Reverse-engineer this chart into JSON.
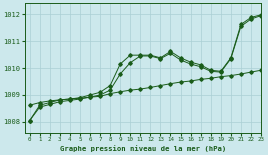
{
  "title": "Graphe pression niveau de la mer (hPa)",
  "background_color": "#cce8ec",
  "grid_color": "#aacfd4",
  "line_color": "#1a5c1a",
  "xlim": [
    -0.5,
    23
  ],
  "ylim": [
    1007.6,
    1012.4
  ],
  "yticks": [
    1008,
    1009,
    1010,
    1011,
    1012
  ],
  "xticks": [
    0,
    1,
    2,
    3,
    4,
    5,
    6,
    7,
    8,
    9,
    10,
    11,
    12,
    13,
    14,
    15,
    16,
    17,
    18,
    19,
    20,
    21,
    22,
    23
  ],
  "s1_y": [
    1008.05,
    1008.62,
    1008.72,
    1008.82,
    1008.85,
    1008.9,
    1009.0,
    1009.1,
    1009.35,
    1010.15,
    1010.48,
    1010.48,
    1010.48,
    1010.38,
    1010.62,
    1010.38,
    1010.22,
    1010.12,
    1009.92,
    1009.88,
    1010.38,
    1011.62,
    1011.88,
    1011.98
  ],
  "s2_y": [
    1008.62,
    1008.72,
    1008.78,
    1008.82,
    1008.85,
    1008.88,
    1008.92,
    1008.95,
    1009.05,
    1009.12,
    1009.18,
    1009.22,
    1009.28,
    1009.35,
    1009.42,
    1009.48,
    1009.52,
    1009.58,
    1009.62,
    1009.68,
    1009.72,
    1009.78,
    1009.85,
    1009.92
  ],
  "s3_y": [
    1008.05,
    1008.55,
    1008.65,
    1008.75,
    1008.8,
    1008.85,
    1008.92,
    1009.0,
    1009.18,
    1009.78,
    1010.2,
    1010.45,
    1010.45,
    1010.35,
    1010.55,
    1010.3,
    1010.15,
    1010.05,
    1009.88,
    1009.85,
    1010.35,
    1011.55,
    1011.82,
    1011.95
  ]
}
